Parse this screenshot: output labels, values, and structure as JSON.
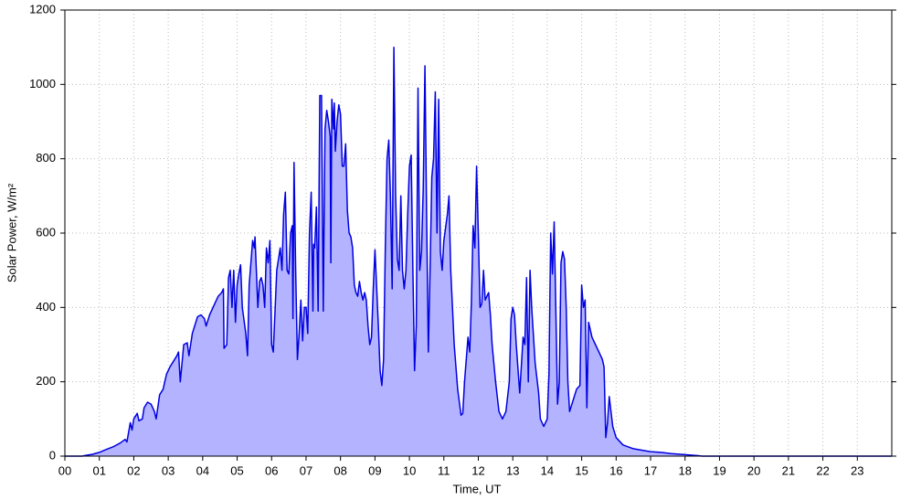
{
  "chart_data": {
    "type": "area",
    "xlabel": "Time, UT",
    "ylabel": "Solar Power, W/m²",
    "xlim": [
      0,
      24
    ],
    "ylim": [
      0,
      1200
    ],
    "xticks": [
      {
        "value": 0,
        "label": "00"
      },
      {
        "value": 1,
        "label": "01"
      },
      {
        "value": 2,
        "label": "02"
      },
      {
        "value": 3,
        "label": "03"
      },
      {
        "value": 4,
        "label": "04"
      },
      {
        "value": 5,
        "label": "05"
      },
      {
        "value": 6,
        "label": "06"
      },
      {
        "value": 7,
        "label": "07"
      },
      {
        "value": 8,
        "label": "08"
      },
      {
        "value": 9,
        "label": "09"
      },
      {
        "value": 10,
        "label": "10"
      },
      {
        "value": 11,
        "label": "11"
      },
      {
        "value": 12,
        "label": "12"
      },
      {
        "value": 13,
        "label": "13"
      },
      {
        "value": 14,
        "label": "14"
      },
      {
        "value": 15,
        "label": "15"
      },
      {
        "value": 16,
        "label": "16"
      },
      {
        "value": 17,
        "label": "17"
      },
      {
        "value": 18,
        "label": "18"
      },
      {
        "value": 19,
        "label": "19"
      },
      {
        "value": 20,
        "label": "20"
      },
      {
        "value": 21,
        "label": "21"
      },
      {
        "value": 22,
        "label": "22"
      },
      {
        "value": 23,
        "label": "23"
      }
    ],
    "yticks": [
      0,
      200,
      400,
      600,
      800,
      1000,
      1200
    ],
    "grid": true,
    "line_color": "#0000e0",
    "fill_color": "#b3b3ff",
    "x": [
      0,
      0.5,
      0.6,
      0.8,
      1.0,
      1.2,
      1.4,
      1.6,
      1.75,
      1.8,
      1.9,
      1.95,
      2.0,
      2.1,
      2.15,
      2.25,
      2.3,
      2.4,
      2.5,
      2.6,
      2.65,
      2.75,
      2.85,
      2.95,
      3.05,
      3.15,
      3.25,
      3.3,
      3.35,
      3.45,
      3.55,
      3.6,
      3.7,
      3.85,
      3.95,
      4.05,
      4.1,
      4.2,
      4.35,
      4.45,
      4.55,
      4.6,
      4.62,
      4.7,
      4.75,
      4.8,
      4.85,
      4.9,
      4.95,
      5.0,
      5.05,
      5.1,
      5.15,
      5.25,
      5.3,
      5.35,
      5.45,
      5.5,
      5.52,
      5.6,
      5.65,
      5.7,
      5.75,
      5.8,
      5.85,
      5.9,
      5.95,
      6.0,
      6.05,
      6.15,
      6.25,
      6.3,
      6.35,
      6.4,
      6.45,
      6.5,
      6.55,
      6.6,
      6.62,
      6.65,
      6.7,
      6.75,
      6.8,
      6.85,
      6.9,
      6.95,
      7.0,
      7.05,
      7.1,
      7.15,
      7.2,
      7.22,
      7.25,
      7.3,
      7.35,
      7.4,
      7.45,
      7.5,
      7.55,
      7.6,
      7.65,
      7.7,
      7.72,
      7.75,
      7.8,
      7.82,
      7.85,
      7.9,
      7.95,
      8.0,
      8.05,
      8.1,
      8.15,
      8.2,
      8.25,
      8.3,
      8.35,
      8.4,
      8.45,
      8.5,
      8.55,
      8.6,
      8.65,
      8.7,
      8.75,
      8.8,
      8.85,
      8.9,
      8.95,
      9.0,
      9.05,
      9.1,
      9.15,
      9.2,
      9.25,
      9.3,
      9.35,
      9.4,
      9.45,
      9.5,
      9.55,
      9.6,
      9.65,
      9.7,
      9.75,
      9.8,
      9.85,
      9.9,
      9.95,
      10.0,
      10.05,
      10.1,
      10.15,
      10.2,
      10.25,
      10.3,
      10.35,
      10.4,
      10.45,
      10.5,
      10.55,
      10.6,
      10.65,
      10.7,
      10.75,
      10.8,
      10.85,
      10.9,
      10.95,
      11.0,
      11.1,
      11.15,
      11.2,
      11.3,
      11.4,
      11.5,
      11.55,
      11.6,
      11.7,
      11.75,
      11.8,
      11.85,
      11.9,
      11.95,
      12.0,
      12.05,
      12.1,
      12.15,
      12.2,
      12.25,
      12.3,
      12.35,
      12.4,
      12.5,
      12.6,
      12.7,
      12.8,
      12.9,
      12.95,
      13.0,
      13.05,
      13.1,
      13.2,
      13.3,
      13.35,
      13.4,
      13.45,
      13.5,
      13.55,
      13.65,
      13.75,
      13.8,
      13.9,
      14.0,
      14.05,
      14.1,
      14.15,
      14.2,
      14.25,
      14.3,
      14.35,
      14.4,
      14.45,
      14.5,
      14.55,
      14.6,
      14.65,
      14.75,
      14.85,
      14.95,
      15.0,
      15.05,
      15.1,
      15.15,
      15.2,
      15.3,
      15.4,
      15.5,
      15.6,
      15.65,
      15.7,
      15.75,
      15.8,
      15.85,
      15.9,
      16.0,
      16.2,
      16.5,
      16.8,
      17.0,
      17.3,
      17.6,
      18.0,
      18.3,
      18.5,
      24
    ],
    "values": [
      0,
      0,
      2,
      5,
      10,
      18,
      25,
      35,
      45,
      38,
      90,
      70,
      100,
      115,
      95,
      100,
      130,
      145,
      140,
      120,
      100,
      165,
      180,
      220,
      240,
      255,
      270,
      280,
      200,
      300,
      305,
      270,
      330,
      375,
      380,
      370,
      350,
      380,
      410,
      430,
      440,
      450,
      290,
      300,
      480,
      500,
      400,
      500,
      360,
      460,
      490,
      515,
      400,
      330,
      270,
      460,
      580,
      560,
      590,
      400,
      470,
      480,
      460,
      400,
      560,
      520,
      580,
      300,
      280,
      500,
      560,
      500,
      650,
      710,
      500,
      490,
      600,
      620,
      370,
      790,
      500,
      260,
      330,
      420,
      310,
      400,
      400,
      330,
      600,
      710,
      390,
      570,
      560,
      670,
      390,
      970,
      970,
      390,
      880,
      930,
      900,
      860,
      520,
      960,
      880,
      950,
      820,
      900,
      945,
      920,
      780,
      780,
      840,
      660,
      600,
      590,
      560,
      460,
      440,
      430,
      470,
      440,
      420,
      440,
      420,
      350,
      300,
      320,
      450,
      555,
      450,
      350,
      230,
      190,
      260,
      560,
      800,
      850,
      700,
      450,
      1100,
      700,
      530,
      500,
      700,
      500,
      450,
      500,
      650,
      780,
      810,
      500,
      230,
      350,
      990,
      500,
      550,
      720,
      1050,
      650,
      280,
      500,
      750,
      800,
      980,
      600,
      960,
      550,
      500,
      580,
      650,
      700,
      500,
      300,
      180,
      110,
      115,
      200,
      320,
      280,
      420,
      620,
      560,
      780,
      600,
      400,
      410,
      500,
      420,
      430,
      440,
      380,
      300,
      200,
      120,
      100,
      120,
      200,
      370,
      400,
      380,
      300,
      170,
      320,
      300,
      480,
      200,
      500,
      400,
      250,
      170,
      100,
      80,
      100,
      220,
      600,
      490,
      630,
      400,
      140,
      200,
      520,
      550,
      530,
      400,
      200,
      120,
      150,
      180,
      190,
      460,
      400,
      420,
      130,
      360,
      320,
      300,
      280,
      260,
      240,
      50,
      90,
      160,
      120,
      80,
      50,
      30,
      20,
      15,
      12,
      10,
      7,
      4,
      2,
      0,
      0
    ]
  }
}
